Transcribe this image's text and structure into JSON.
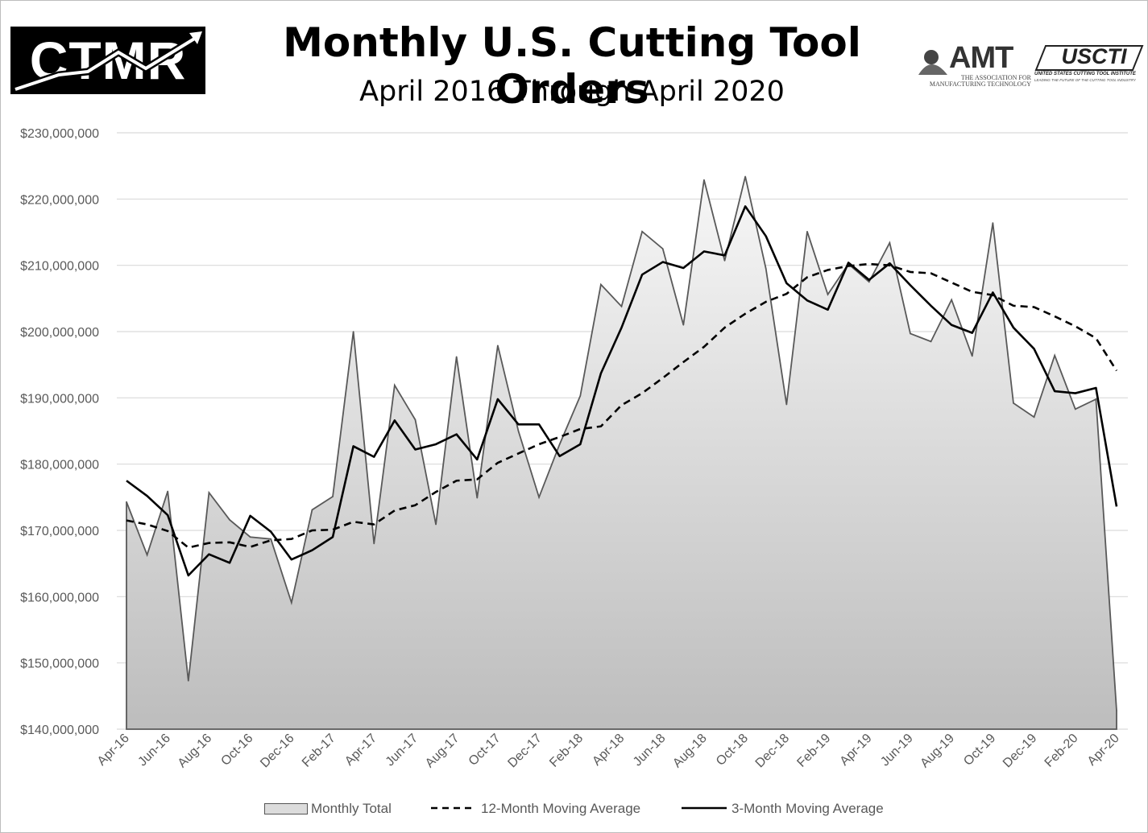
{
  "header": {
    "logo_text": "CTMR",
    "title": "Monthly U.S. Cutting Tool Orders",
    "subtitle": "April 2016 Through April 2020",
    "amt_logo_text": "AMT",
    "amt_logo_sub1": "THE ASSOCIATION FOR",
    "amt_logo_sub2": "MANUFACTURING TECHNOLOGY",
    "usct_logo_text": "USCTI",
    "usct_logo_sub": "UNITED STATES CUTTING TOOL INSTITUTE",
    "usct_logo_sub2": "LEADING THE FUTURE OF THE CUTTING TOOL INDUSTRY"
  },
  "chart_data": {
    "type": "area",
    "title": "Monthly U.S. Cutting Tool Orders",
    "subtitle": "April 2016 Through April 2020",
    "ylim": [
      140000000,
      230000000
    ],
    "y_ticks": [
      "$140,000,000",
      "$150,000,000",
      "$160,000,000",
      "$170,000,000",
      "$180,000,000",
      "$190,000,000",
      "$200,000,000",
      "$210,000,000",
      "$220,000,000",
      "$230,000,000"
    ],
    "grid": true,
    "legend_position": "bottom",
    "months": [
      "Apr-16",
      "May-16",
      "Jun-16",
      "Jul-16",
      "Aug-16",
      "Sep-16",
      "Oct-16",
      "Nov-16",
      "Dec-16",
      "Jan-17",
      "Feb-17",
      "Mar-17",
      "Apr-17",
      "May-17",
      "Jun-17",
      "Jul-17",
      "Aug-17",
      "Sep-17",
      "Oct-17",
      "Nov-17",
      "Dec-17",
      "Jan-18",
      "Feb-18",
      "Mar-18",
      "Apr-18",
      "May-18",
      "Jun-18",
      "Jul-18",
      "Aug-18",
      "Sep-18",
      "Oct-18",
      "Nov-18",
      "Dec-18",
      "Jan-19",
      "Feb-19",
      "Mar-19",
      "Apr-19",
      "May-19",
      "Jun-19",
      "Jul-19",
      "Aug-19",
      "Sep-19",
      "Oct-19",
      "Nov-19",
      "Dec-19",
      "Jan-20",
      "Feb-20",
      "Mar-20",
      "Apr-20"
    ],
    "x_tick_labels": [
      "Apr-16",
      "Jun-16",
      "Aug-16",
      "Oct-16",
      "Dec-16",
      "Feb-17",
      "Apr-17",
      "Jun-17",
      "Aug-17",
      "Oct-17",
      "Dec-17",
      "Feb-18",
      "Apr-18",
      "Jun-18",
      "Aug-18",
      "Oct-18",
      "Dec-18",
      "Feb-19",
      "Apr-19",
      "Jun-19",
      "Aug-19",
      "Oct-19",
      "Dec-19",
      "Feb-20",
      "Apr-20"
    ],
    "series": [
      {
        "name": "Monthly Total",
        "style": "area",
        "color": "#595959",
        "values": [
          174300000,
          166300000,
          175900000,
          147300000,
          175700000,
          171600000,
          169000000,
          168700000,
          159100000,
          173100000,
          175100000,
          200000000,
          168000000,
          191900000,
          186700000,
          170900000,
          196200000,
          174900000,
          197900000,
          185000000,
          175000000,
          183000000,
          190300000,
          207100000,
          203800000,
          215100000,
          212500000,
          201000000,
          222900000,
          210700000,
          223400000,
          209500000,
          189000000,
          215100000,
          205600000,
          210200000,
          207500000,
          213400000,
          199700000,
          198500000,
          204800000,
          196300000,
          216400000,
          189200000,
          187100000,
          196400000,
          188300000,
          189800000,
          142800000
        ]
      },
      {
        "name": "12-Month Moving Average",
        "style": "dashed",
        "color": "#000000",
        "values": [
          171500000,
          170900000,
          169900000,
          167400000,
          168100000,
          168200000,
          167500000,
          168500000,
          168700000,
          170000000,
          170100000,
          171300000,
          170900000,
          173000000,
          173800000,
          175800000,
          177500000,
          177700000,
          180200000,
          181600000,
          183000000,
          184100000,
          185300000,
          185700000,
          188900000,
          190700000,
          193000000,
          195400000,
          197700000,
          200600000,
          202700000,
          204500000,
          205700000,
          208200000,
          209300000,
          209900000,
          210200000,
          210000000,
          209000000,
          208800000,
          207400000,
          206000000,
          205500000,
          203900000,
          203700000,
          202300000,
          200800000,
          199000000,
          194100000
        ]
      },
      {
        "name": "3-Month Moving Average",
        "style": "solid",
        "color": "#000000",
        "values": [
          177500000,
          175200000,
          172300000,
          163200000,
          166400000,
          165100000,
          172200000,
          169800000,
          165600000,
          167000000,
          169000000,
          182700000,
          181100000,
          186600000,
          182200000,
          183000000,
          184500000,
          180700000,
          189800000,
          186000000,
          186000000,
          181200000,
          183000000,
          193700000,
          200600000,
          208600000,
          210500000,
          209600000,
          212100000,
          211500000,
          218900000,
          214400000,
          207300000,
          204700000,
          203300000,
          210400000,
          207800000,
          210300000,
          207000000,
          203900000,
          201000000,
          199800000,
          205900000,
          200600000,
          197400000,
          191000000,
          190700000,
          191500000,
          173600000
        ]
      }
    ]
  }
}
